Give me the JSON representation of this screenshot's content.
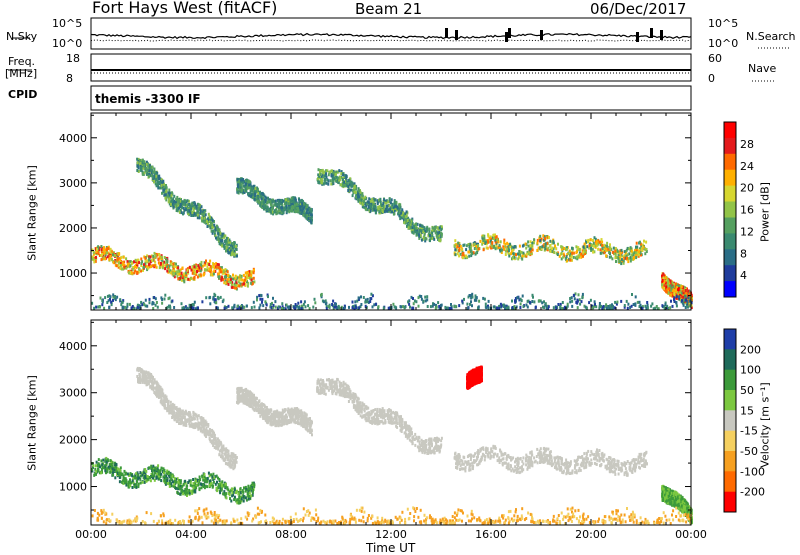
{
  "header": {
    "station": "Fort Hays West (fitACF)",
    "beam": "Beam 21",
    "date": "06/Dec/2017"
  },
  "strips": {
    "nsky_label": "N.Sky",
    "nsky_ticks": [
      "10^5",
      "10^0"
    ],
    "nsearch_label": "N.Search",
    "nsearch_ticks": [
      "10^5",
      "10^0"
    ],
    "freq_label": "Freq.",
    "freq_unit": "[MHz]",
    "freq_ticks": [
      "18",
      "8"
    ],
    "nave_label": "Nave",
    "nave_ticks": [
      "60",
      "0"
    ],
    "cpid_label": "CPID",
    "cpid_value": "themis -3300 IF"
  },
  "chart_data": [
    {
      "type": "heatmap",
      "quantity": "Power",
      "ylabel": "Slant Range [km]",
      "xlabel": "Time UT",
      "xlim": [
        0,
        24
      ],
      "ylim": [
        180,
        4550
      ],
      "yticks": [
        1000,
        2000,
        3000,
        4000
      ],
      "xticks": [
        "00:00",
        "04:00",
        "08:00",
        "12:00",
        "16:00",
        "20:00",
        "00:00"
      ],
      "colorbar": {
        "label": "Power [dB]",
        "ticks": [
          "4",
          "8",
          "12",
          "16",
          "20",
          "24",
          "28"
        ],
        "colors": [
          "#0000ff",
          "#1f3c9c",
          "#2a6d86",
          "#3a8a70",
          "#55a060",
          "#92c448",
          "#d6d630",
          "#ffb000",
          "#ff6a00",
          "#e41a1c",
          "#ff0000"
        ]
      },
      "echo_regions": [
        {
          "t": [
            0.0,
            6.5
          ],
          "r": [
            1400,
            900
          ],
          "level": [
            12,
            26
          ]
        },
        {
          "t": [
            1.8,
            5.8
          ],
          "r": [
            3400,
            1600
          ],
          "level": [
            6,
            16
          ]
        },
        {
          "t": [
            5.8,
            8.8
          ],
          "r": [
            2900,
            2300
          ],
          "level": [
            6,
            14
          ]
        },
        {
          "t": [
            9.0,
            14.0
          ],
          "r": [
            3300,
            1800
          ],
          "level": [
            6,
            16
          ]
        },
        {
          "t": [
            14.5,
            22.2
          ],
          "r": [
            1650,
            1500
          ],
          "level": [
            8,
            24
          ]
        },
        {
          "t": [
            22.8,
            24.0
          ],
          "r": [
            1000,
            300
          ],
          "level": [
            12,
            28
          ]
        },
        {
          "t": [
            0.0,
            24.0
          ],
          "r": [
            300,
            300
          ],
          "level": [
            4,
            12
          ]
        }
      ]
    },
    {
      "type": "heatmap",
      "quantity": "Velocity",
      "ylabel": "Slant Range [km]",
      "xlabel": "Time UT",
      "xlim": [
        0,
        24
      ],
      "ylim": [
        180,
        4550
      ],
      "yticks": [
        1000,
        2000,
        3000,
        4000
      ],
      "xticks": [
        "00:00",
        "04:00",
        "08:00",
        "12:00",
        "16:00",
        "20:00",
        "00:00"
      ],
      "colorbar": {
        "label": "Velocity [m s⁻¹]",
        "ticks": [
          "200",
          "100",
          "50",
          "15",
          "-15",
          "-50",
          "-100",
          "-200"
        ],
        "colors": [
          "#1e3ea8",
          "#1e6a5a",
          "#3c9a3a",
          "#7cc840",
          "#c8c8c0",
          "#f5d060",
          "#f6a020",
          "#ff6a00",
          "#ff0000"
        ]
      },
      "echo_regions": [
        {
          "t": [
            0.0,
            6.5
          ],
          "r": [
            1400,
            900
          ],
          "velocity": [
            15,
            100
          ]
        },
        {
          "t": [
            1.8,
            5.8
          ],
          "r": [
            3400,
            1600
          ],
          "velocity": [
            -15,
            15
          ]
        },
        {
          "t": [
            5.8,
            8.8
          ],
          "r": [
            2900,
            2300
          ],
          "velocity": [
            -15,
            15
          ]
        },
        {
          "t": [
            9.0,
            14.0
          ],
          "r": [
            3300,
            1800
          ],
          "velocity": [
            -15,
            15
          ]
        },
        {
          "t": [
            14.5,
            22.2
          ],
          "r": [
            1650,
            1500
          ],
          "velocity": [
            -15,
            15
          ]
        },
        {
          "t": [
            15.0,
            15.6
          ],
          "r": [
            3300,
            3300
          ],
          "velocity": [
            -200,
            -200
          ]
        },
        {
          "t": [
            22.8,
            24.0
          ],
          "r": [
            1000,
            300
          ],
          "velocity": [
            15,
            50
          ]
        },
        {
          "t": [
            0.0,
            24.0
          ],
          "r": [
            300,
            300
          ],
          "velocity": [
            -50,
            -15
          ]
        }
      ]
    }
  ]
}
